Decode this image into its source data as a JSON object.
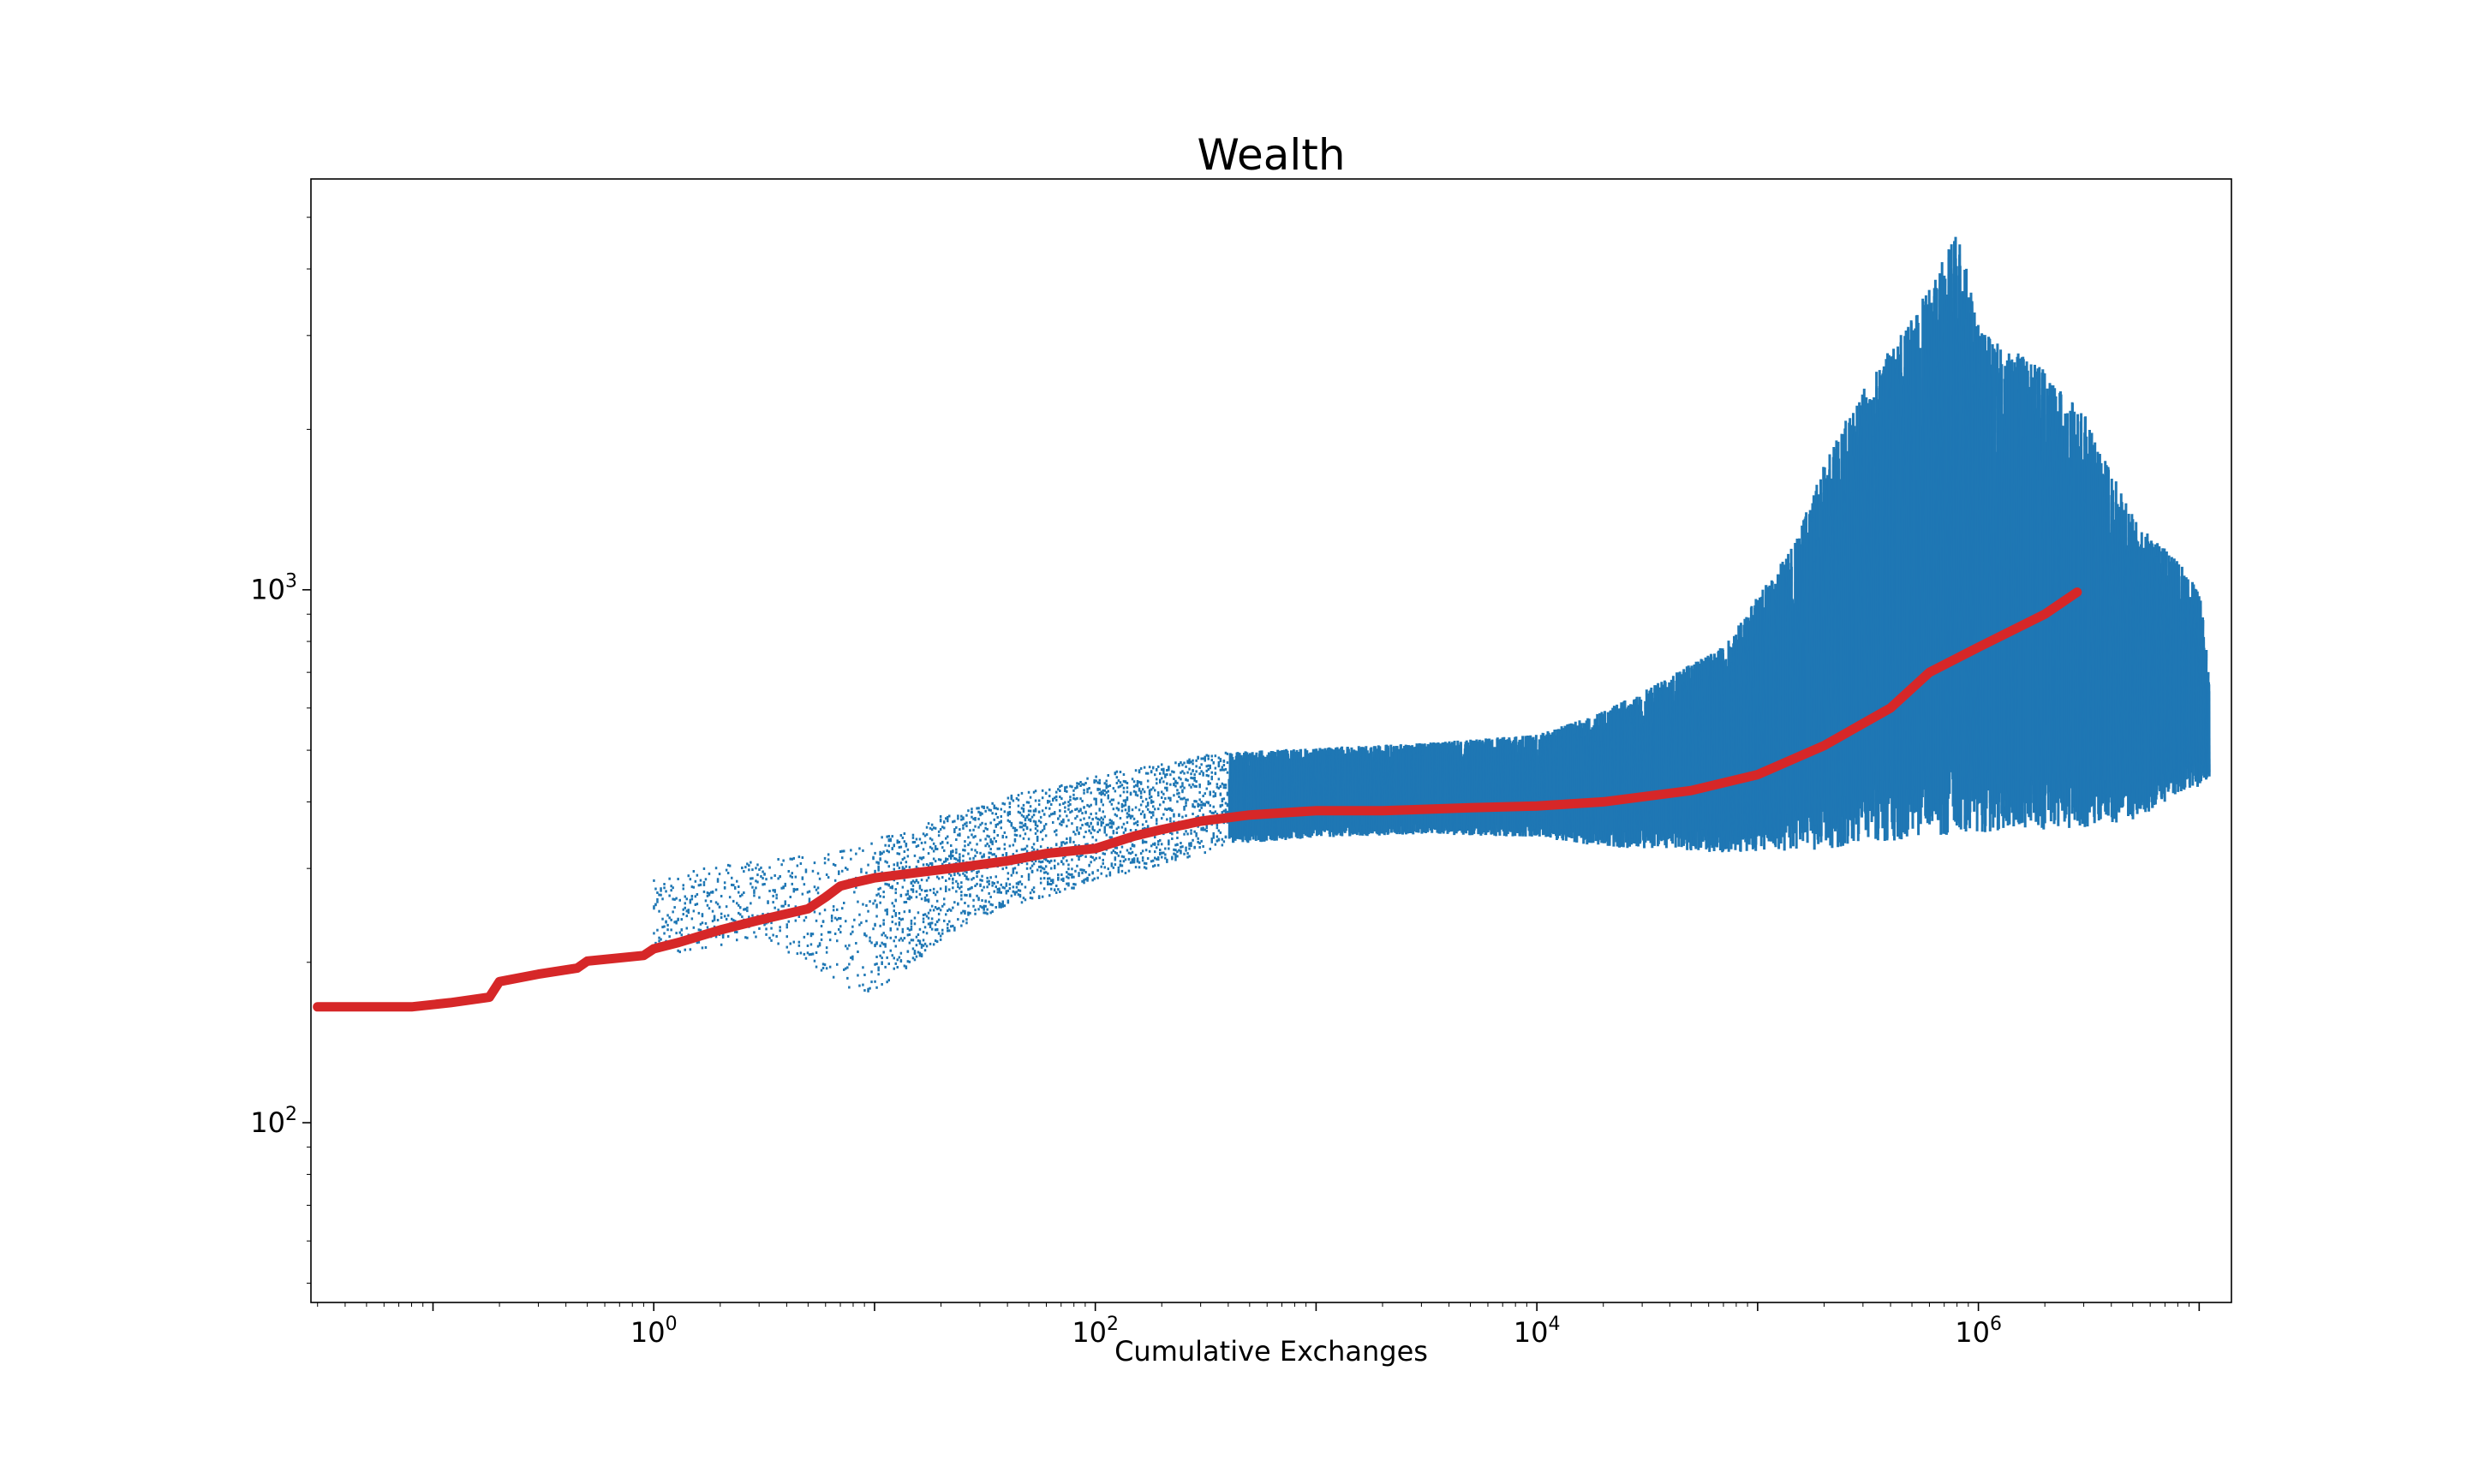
{
  "chart_data": {
    "type": "scatter",
    "title": "Wealth",
    "xlabel": "Cumulative Exchanges",
    "ylabel": "",
    "xscale": "log",
    "yscale": "log",
    "xlim": [
      0.028,
      14000000
    ],
    "ylim": [
      46,
      5900
    ],
    "grid": false,
    "legend": "none",
    "x_ticks": [
      {
        "base": "10",
        "exp": "0",
        "value": 1
      },
      {
        "base": "10",
        "exp": "2",
        "value": 100
      },
      {
        "base": "10",
        "exp": "4",
        "value": 10000
      },
      {
        "base": "10",
        "exp": "6",
        "value": 1000000
      }
    ],
    "y_ticks": [
      {
        "base": "10",
        "exp": "2",
        "value": 100
      },
      {
        "base": "10",
        "exp": "3",
        "value": 1000
      }
    ],
    "series": [
      {
        "kind": "scatter-band",
        "color": "#1f77b4",
        "envelope": {
          "x": [
            1,
            2,
            3,
            5,
            7,
            10,
            15,
            25,
            40,
            70,
            100,
            200,
            400,
            1000,
            3000,
            10000,
            20000,
            40000,
            70000,
            100000,
            150000,
            200000,
            300000,
            500000,
            800000,
            1000000,
            2000000,
            3000000,
            5000000,
            8000000,
            10000000,
            11000000
          ],
          "low": [
            205,
            215,
            222,
            200,
            180,
            175,
            200,
            235,
            255,
            270,
            285,
            305,
            330,
            340,
            345,
            340,
            325,
            320,
            315,
            315,
            315,
            315,
            320,
            325,
            330,
            335,
            340,
            345,
            360,
            400,
            420,
            440
          ],
          "high": [
            285,
            305,
            310,
            318,
            330,
            340,
            360,
            390,
            410,
            430,
            450,
            470,
            500,
            510,
            520,
            540,
            600,
            700,
            800,
            1000,
            1300,
            1800,
            2500,
            3400,
            5000,
            3200,
            2700,
            2200,
            1400,
            1150,
            1000,
            680
          ]
        }
      },
      {
        "kind": "line",
        "color": "#d62728",
        "x": [
          0.03,
          0.08,
          0.12,
          0.18,
          0.2,
          0.3,
          0.45,
          0.5,
          0.9,
          1,
          1.3,
          2,
          3,
          5,
          6,
          7,
          8,
          10,
          15,
          25,
          40,
          60,
          100,
          150,
          200,
          300,
          500,
          1000,
          2000,
          5000,
          10000,
          20000,
          50000,
          100000,
          200000,
          400000,
          600000,
          1000000,
          2000000,
          2800000
        ],
        "y": [
          165,
          165,
          168,
          172,
          184,
          190,
          195,
          201,
          206,
          212,
          218,
          230,
          240,
          252,
          265,
          278,
          282,
          288,
          294,
          302,
          310,
          320,
          327,
          345,
          355,
          368,
          378,
          385,
          385,
          390,
          393,
          400,
          420,
          450,
          510,
          600,
          700,
          780,
          900,
          990
        ]
      }
    ]
  }
}
